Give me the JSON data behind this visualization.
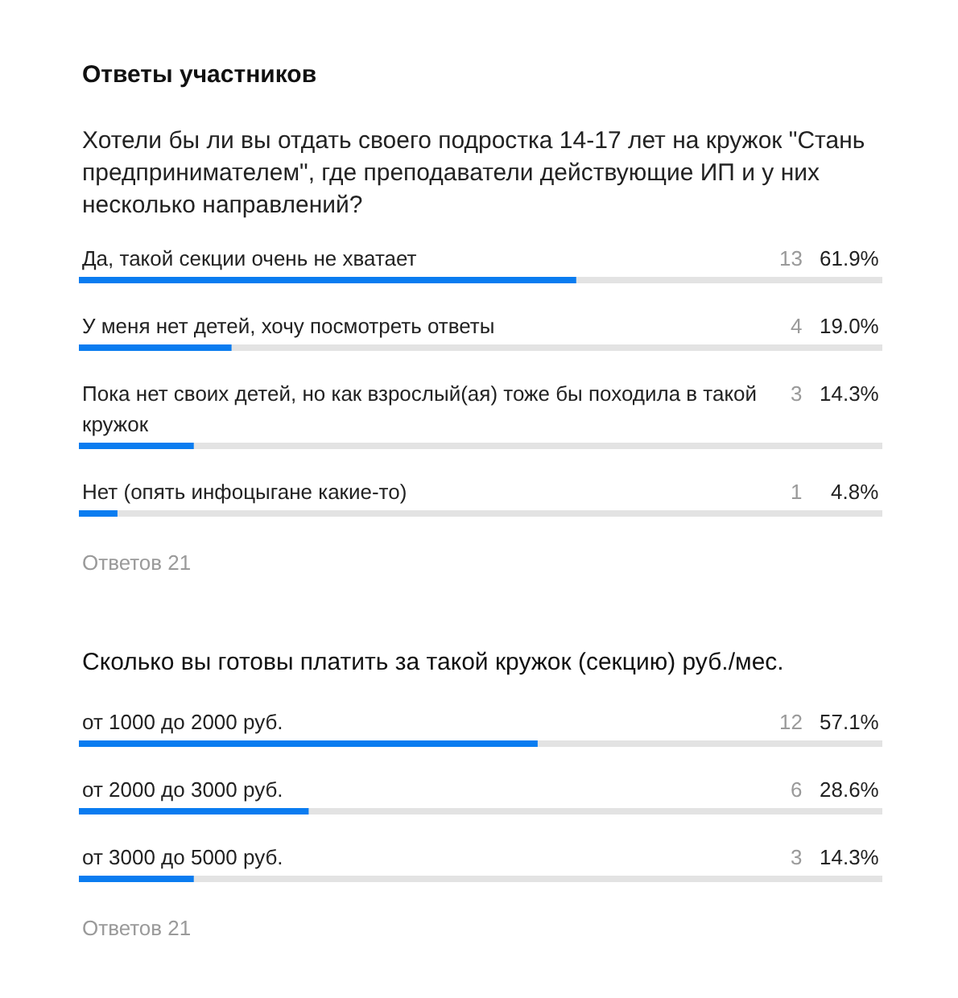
{
  "chart_data": [
    {
      "type": "bar",
      "orientation": "horizontal",
      "title": "Ответы участников",
      "subtitle": "Хотели бы ли вы отдать своего подростка 14-17 лет на кружок \"Стань предпринимателем\", где преподаватели действующие ИП и у них несколько направлений?",
      "categories": [
        "Да, такой секции очень не хватает",
        "У меня нет детей, хочу посмотреть ответы",
        "Пока нет своих детей, но как взрослый(ая) тоже бы походила в такой кружок",
        "Нет (опять инфоцыгане какие-то)"
      ],
      "values": [
        61.9,
        19.0,
        14.3,
        4.8
      ],
      "value_labels": [
        "61.9%",
        "19.0%",
        "14.3%",
        "4.8%"
      ],
      "color": "#0a7cf0",
      "annotations": [
        "13",
        "4",
        "3",
        "1",
        "Ответов 21"
      ]
    },
    {
      "type": "bar",
      "orientation": "horizontal",
      "title": "Сколько вы готовы платить за такой кружок (секцию) руб./мес.",
      "categories": [
        "от 1000 до 2000 руб.",
        "от 2000 до 3000 руб.",
        "от 3000 до 5000 руб."
      ],
      "values": [
        57.1,
        28.6,
        14.3
      ],
      "value_labels": [
        "57.1%",
        "28.6%",
        "14.3%"
      ],
      "color": "#0a7cf0",
      "annotations": [
        "12",
        "6",
        "3",
        "Ответов 21"
      ]
    }
  ]
}
